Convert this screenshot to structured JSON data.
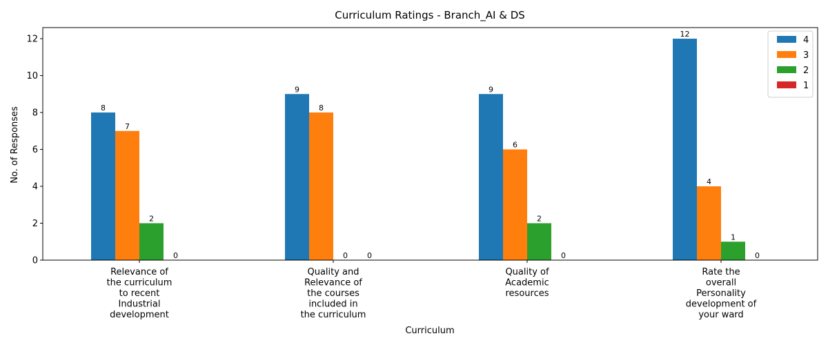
{
  "chart_data": {
    "type": "bar",
    "title": "Curriculum Ratings - Branch_AI & DS",
    "xlabel": "Curriculum",
    "ylabel": "No. of Responses",
    "ylim": [
      0,
      12.6
    ],
    "yticks": [
      0,
      2,
      4,
      6,
      8,
      10,
      12
    ],
    "categories": [
      [
        "Relevance of",
        "the curriculum",
        "to recent",
        "Industrial",
        "development"
      ],
      [
        "Quality and",
        "Relevance of",
        "the courses",
        "included in",
        "the curriculum"
      ],
      [
        "Quality of",
        "Academic",
        "resources"
      ],
      [
        "Rate the",
        "overall",
        "Personality",
        "development of",
        "your ward"
      ]
    ],
    "series": [
      {
        "name": "4",
        "color": "#1f77b4",
        "values": [
          8,
          9,
          9,
          12
        ]
      },
      {
        "name": "3",
        "color": "#ff7f0e",
        "values": [
          7,
          8,
          6,
          4
        ]
      },
      {
        "name": "2",
        "color": "#2ca02c",
        "values": [
          2,
          0,
          2,
          1
        ]
      },
      {
        "name": "1",
        "color": "#d62728",
        "values": [
          0,
          0,
          0,
          0
        ]
      }
    ],
    "grid": false,
    "legend_position": "top-right"
  }
}
